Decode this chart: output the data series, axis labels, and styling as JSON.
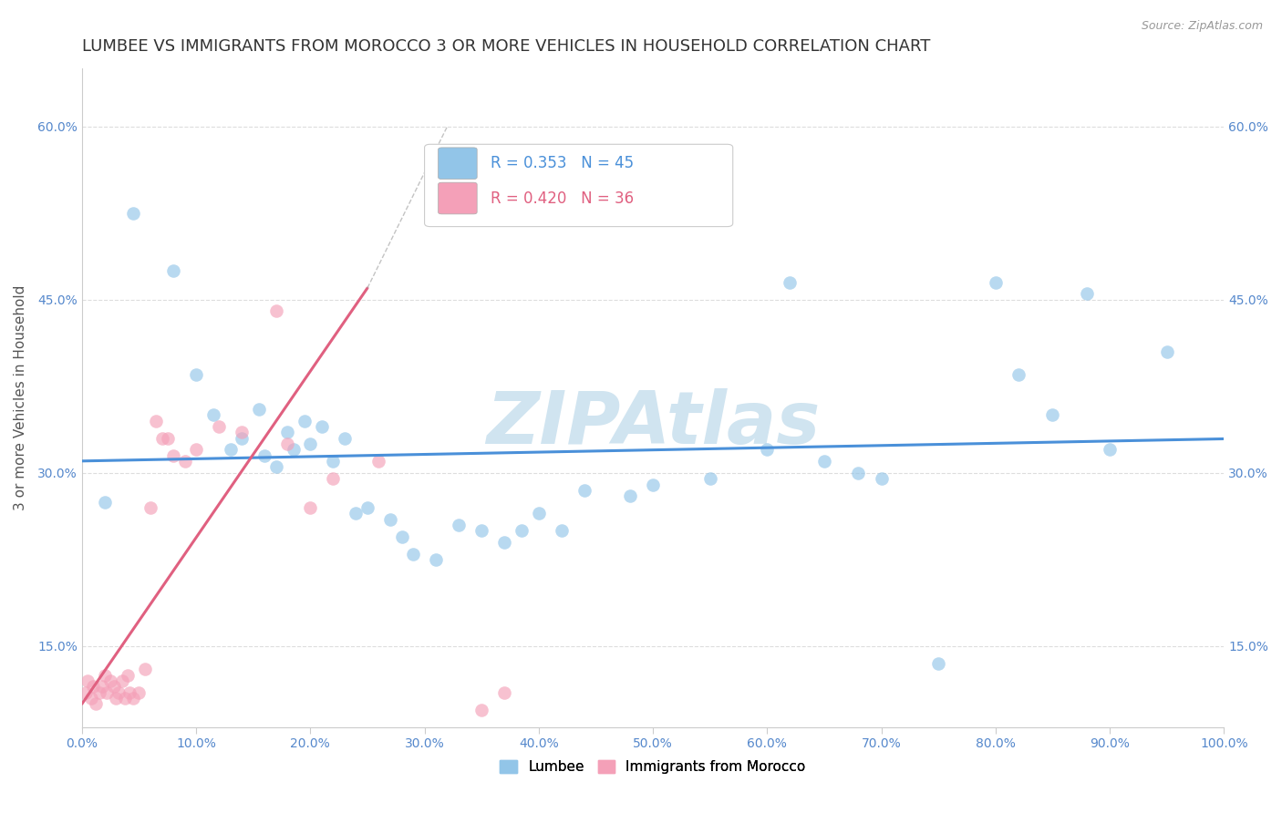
{
  "title": "LUMBEE VS IMMIGRANTS FROM MOROCCO 3 OR MORE VEHICLES IN HOUSEHOLD CORRELATION CHART",
  "source": "Source: ZipAtlas.com",
  "ylabel": "3 or more Vehicles in Household",
  "xlim": [
    0.0,
    100.0
  ],
  "ylim": [
    8.0,
    65.0
  ],
  "yticks": [
    15.0,
    30.0,
    45.0,
    60.0
  ],
  "xticks": [
    0.0,
    10.0,
    20.0,
    30.0,
    40.0,
    50.0,
    60.0,
    70.0,
    80.0,
    90.0,
    100.0
  ],
  "lumbee_R": 0.353,
  "lumbee_N": 45,
  "morocco_R": 0.42,
  "morocco_N": 36,
  "lumbee_color": "#92C5E8",
  "morocco_color": "#F4A0B8",
  "lumbee_line_color": "#4A90D9",
  "morocco_line_color": "#E06080",
  "watermark": "ZIPAtlas",
  "watermark_color": "#D0E4F0",
  "background_color": "#ffffff",
  "grid_color": "#DDDDDD",
  "lumbee_x": [
    2.0,
    4.5,
    8.0,
    10.0,
    11.5,
    13.0,
    14.0,
    15.5,
    16.0,
    17.0,
    18.0,
    18.5,
    19.5,
    20.0,
    21.0,
    22.0,
    23.0,
    24.0,
    25.0,
    27.0,
    28.0,
    29.0,
    31.0,
    33.0,
    35.0,
    37.0,
    38.5,
    40.0,
    42.0,
    44.0,
    48.0,
    50.0,
    55.0,
    60.0,
    62.0,
    65.0,
    68.0,
    70.0,
    75.0,
    80.0,
    82.0,
    85.0,
    88.0,
    90.0,
    95.0
  ],
  "lumbee_y": [
    27.5,
    52.5,
    47.5,
    38.5,
    35.0,
    32.0,
    33.0,
    35.5,
    31.5,
    30.5,
    33.5,
    32.0,
    34.5,
    32.5,
    34.0,
    31.0,
    33.0,
    26.5,
    27.0,
    26.0,
    24.5,
    23.0,
    22.5,
    25.5,
    25.0,
    24.0,
    25.0,
    26.5,
    25.0,
    28.5,
    28.0,
    29.0,
    29.5,
    32.0,
    46.5,
    31.0,
    30.0,
    29.5,
    13.5,
    46.5,
    38.5,
    35.0,
    45.5,
    32.0,
    40.5
  ],
  "morocco_x": [
    0.3,
    0.5,
    0.8,
    1.0,
    1.2,
    1.5,
    1.8,
    2.0,
    2.2,
    2.5,
    2.8,
    3.0,
    3.2,
    3.5,
    3.8,
    4.0,
    4.2,
    4.5,
    5.0,
    5.5,
    6.0,
    6.5,
    7.0,
    7.5,
    8.0,
    9.0,
    10.0,
    12.0,
    14.0,
    17.0,
    18.0,
    20.0,
    22.0,
    26.0,
    35.0,
    37.0
  ],
  "morocco_y": [
    11.0,
    12.0,
    10.5,
    11.5,
    10.0,
    11.0,
    11.5,
    12.5,
    11.0,
    12.0,
    11.5,
    10.5,
    11.0,
    12.0,
    10.5,
    12.5,
    11.0,
    10.5,
    11.0,
    13.0,
    27.0,
    34.5,
    33.0,
    33.0,
    31.5,
    31.0,
    32.0,
    34.0,
    33.5,
    44.0,
    32.5,
    27.0,
    29.5,
    31.0,
    9.5,
    11.0
  ],
  "title_fontsize": 13,
  "axis_label_fontsize": 11,
  "tick_fontsize": 10,
  "legend_fontsize": 13
}
